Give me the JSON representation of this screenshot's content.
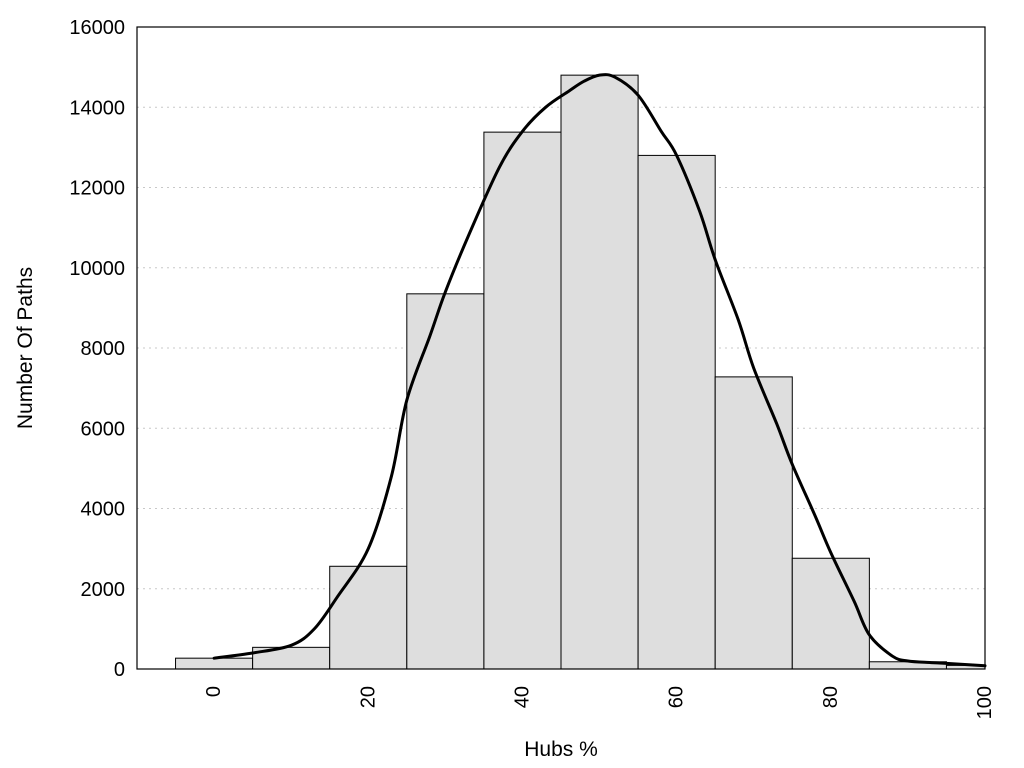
{
  "chart_data": {
    "type": "bar",
    "title": "",
    "xlabel": "Hubs %",
    "ylabel": "Number Of Paths",
    "xlim": [
      -10,
      100
    ],
    "ylim": [
      0,
      16000
    ],
    "grid": "horizontal dotted",
    "legend": "none",
    "bar_color": "#dedede",
    "x_ticks": [
      0,
      20,
      40,
      60,
      80,
      100
    ],
    "y_ticks": [
      0,
      2000,
      4000,
      6000,
      8000,
      10000,
      12000,
      14000,
      16000
    ],
    "bin_width": 10,
    "bins": [
      {
        "x": 0,
        "value": 270
      },
      {
        "x": 10,
        "value": 540
      },
      {
        "x": 20,
        "value": 2560
      },
      {
        "x": 30,
        "value": 9350
      },
      {
        "x": 40,
        "value": 13380
      },
      {
        "x": 50,
        "value": 14800
      },
      {
        "x": 60,
        "value": 12800
      },
      {
        "x": 70,
        "value": 7280
      },
      {
        "x": 80,
        "value": 2760
      },
      {
        "x": 90,
        "value": 180
      },
      {
        "x": 100,
        "value": 90
      }
    ],
    "curve": {
      "x": [
        0,
        5,
        10,
        13,
        16,
        20,
        23,
        25,
        28,
        30,
        33,
        37,
        40,
        43,
        46,
        48,
        50,
        52,
        55,
        58,
        60,
        63,
        65,
        68,
        70,
        73,
        75,
        78,
        80,
        83,
        85,
        88,
        90,
        93,
        95,
        100
      ],
      "y": [
        270,
        400,
        590,
        1000,
        1800,
        3000,
        4800,
        6700,
        8300,
        9400,
        10800,
        12500,
        13400,
        14000,
        14400,
        14650,
        14800,
        14750,
        14300,
        13400,
        12800,
        11400,
        10200,
        8700,
        7500,
        6100,
        5100,
        3800,
        2900,
        1700,
        850,
        320,
        200,
        160,
        140,
        80
      ]
    }
  }
}
